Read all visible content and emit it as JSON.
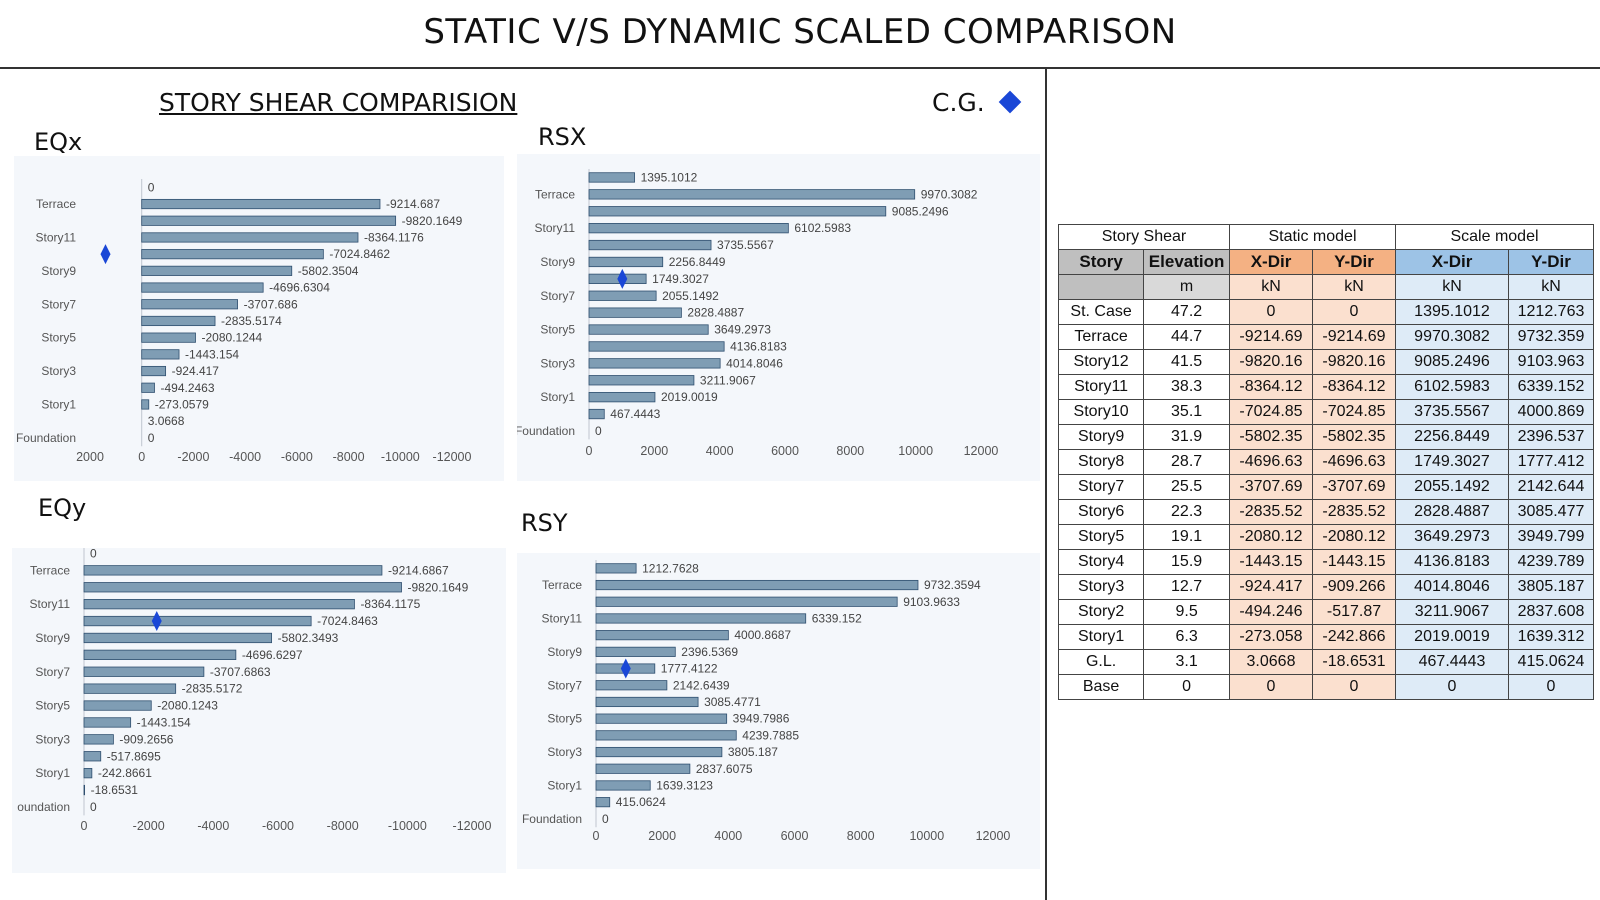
{
  "page": {
    "title": "STATIC V/S DYNAMIC SCALED COMPARISON",
    "subtitle": "STORY SHEAR COMPARISION",
    "cg_label": "C.G.",
    "cg_icon": "diamond-icon",
    "cg_color": "#1a47d6"
  },
  "colors": {
    "bar_fill": "#7f9db4",
    "bar_stroke": "#2f4f6f",
    "panel_bg": "#f4f7fb"
  },
  "chart_data": [
    {
      "id": "eqx",
      "type": "bar",
      "orientation": "horizontal",
      "title": "EQx",
      "values": [
        0,
        -9214.687,
        -9820.1649,
        -8364.1176,
        -7024.8462,
        -5802.3504,
        -4696.6304,
        -3707.686,
        -2835.5174,
        -2080.1244,
        -1443.154,
        -924.417,
        -494.2463,
        -273.0579,
        3.0668,
        0
      ],
      "labels": [
        "0",
        "-9214.687",
        "-9820.1649",
        "-8364.1176",
        "-7024.8462",
        "-5802.3504",
        "-4696.6304",
        "-3707.686",
        "-2835.5174",
        "-2080.1244",
        "-1443.154",
        "-924.417",
        "-494.2463",
        "-273.0579",
        "3.0668",
        "0"
      ],
      "category_labels": [
        "",
        "Terrace",
        "",
        "Story11",
        "",
        "Story9",
        "",
        "Story7",
        "",
        "Story5",
        "",
        "Story3",
        "",
        "Story1",
        "",
        "Foundation"
      ],
      "xlim": [
        2000,
        -12000
      ],
      "ticks": [
        2000,
        0,
        -2000,
        -4000,
        -6000,
        -8000,
        -10000,
        -12000
      ],
      "tick_labels": [
        "2000",
        "0",
        "-2000",
        "-4000",
        "-6000",
        "-8000",
        "-10000",
        "-12000"
      ],
      "cg_row": 4,
      "cg_value": 1400
    },
    {
      "id": "rsx",
      "type": "bar",
      "orientation": "horizontal",
      "title": "RSX",
      "values": [
        1395.1012,
        9970.3082,
        9085.2496,
        6102.5983,
        3735.5567,
        2256.8449,
        1749.3027,
        2055.1492,
        2828.4887,
        3649.2973,
        4136.8183,
        4014.8046,
        3211.9067,
        2019.0019,
        467.4443,
        0
      ],
      "labels": [
        "1395.1012",
        "9970.3082",
        "9085.2496",
        "6102.5983",
        "3735.5567",
        "2256.8449",
        "1749.3027",
        "2055.1492",
        "2828.4887",
        "3649.2973",
        "4136.8183",
        "4014.8046",
        "3211.9067",
        "2019.0019",
        "467.4443",
        "0"
      ],
      "category_labels": [
        "",
        "Terrace",
        "",
        "Story11",
        "",
        "Story9",
        "",
        "Story7",
        "",
        "Story5",
        "",
        "Story3",
        "",
        "Story1",
        "",
        "Foundation"
      ],
      "xlim": [
        0,
        12000
      ],
      "ticks": [
        0,
        2000,
        4000,
        6000,
        8000,
        10000,
        12000
      ],
      "tick_labels": [
        "0",
        "2000",
        "4000",
        "6000",
        "8000",
        "10000",
        "12000"
      ],
      "cg_row": 6,
      "cg_value": 1020
    },
    {
      "id": "eqy",
      "type": "bar",
      "orientation": "horizontal",
      "title": "EQy",
      "values": [
        0,
        -9214.6867,
        -9820.1649,
        -8364.1175,
        -7024.8463,
        -5802.3493,
        -4696.6297,
        -3707.6863,
        -2835.5172,
        -2080.1243,
        -1443.154,
        -909.2656,
        -517.8695,
        -242.8661,
        -18.6531,
        0
      ],
      "labels": [
        "0",
        "-9214.6867",
        "-9820.1649",
        "-8364.1175",
        "-7024.8463",
        "-5802.3493",
        "-4696.6297",
        "-3707.6863",
        "-2835.5172",
        "-2080.1243",
        "-1443.154",
        "-909.2656",
        "-517.8695",
        "-242.8661",
        "-18.6531",
        "0"
      ],
      "category_labels": [
        "",
        "Terrace",
        "",
        "Story11",
        "",
        "Story9",
        "",
        "Story7",
        "",
        "Story5",
        "",
        "Story3",
        "",
        "Story1",
        "",
        "oundation"
      ],
      "xlim": [
        0,
        -12000
      ],
      "ticks": [
        0,
        -2000,
        -4000,
        -6000,
        -8000,
        -10000,
        -12000
      ],
      "tick_labels": [
        "0",
        "-2000",
        "-4000",
        "-6000",
        "-8000",
        "-10000",
        "-12000"
      ],
      "cg_row": 4,
      "cg_value": -2250
    },
    {
      "id": "rsy",
      "type": "bar",
      "orientation": "horizontal",
      "title": "RSY",
      "values": [
        1212.7628,
        9732.3594,
        9103.9633,
        6339.152,
        4000.8687,
        2396.5369,
        1777.4122,
        2142.6439,
        3085.4771,
        3949.7986,
        4239.7885,
        3805.187,
        2837.6075,
        1639.3123,
        415.0624,
        0
      ],
      "labels": [
        "1212.7628",
        "9732.3594",
        "9103.9633",
        "6339.152",
        "4000.8687",
        "2396.5369",
        "1777.4122",
        "2142.6439",
        "3085.4771",
        "3949.7986",
        "4239.7885",
        "3805.187",
        "2837.6075",
        "1639.3123",
        "415.0624",
        "0"
      ],
      "category_labels": [
        "",
        "Terrace",
        "",
        "Story11",
        "",
        "Story9",
        "",
        "Story7",
        "",
        "Story5",
        "",
        "Story3",
        "",
        "Story1",
        "",
        "Foundation"
      ],
      "xlim": [
        0,
        12000
      ],
      "ticks": [
        0,
        2000,
        4000,
        6000,
        8000,
        10000,
        12000
      ],
      "tick_labels": [
        "0",
        "2000",
        "4000",
        "6000",
        "8000",
        "10000",
        "12000"
      ],
      "cg_row": 6,
      "cg_value": 900
    }
  ],
  "table": {
    "group_headers": [
      "Story Shear",
      "Static model",
      "Scale model"
    ],
    "column_headers": [
      "Story",
      "Elevation",
      "X-Dir",
      "Y-Dir",
      "X-Dir",
      "Y-Dir"
    ],
    "units": [
      "",
      "m",
      "kN",
      "kN",
      "kN",
      "kN"
    ],
    "rows": [
      [
        "St. Case",
        "47.2",
        "0",
        "0",
        "1395.1012",
        "1212.763"
      ],
      [
        "Terrace",
        "44.7",
        "-9214.69",
        "-9214.69",
        "9970.3082",
        "9732.359"
      ],
      [
        "Story12",
        "41.5",
        "-9820.16",
        "-9820.16",
        "9085.2496",
        "9103.963"
      ],
      [
        "Story11",
        "38.3",
        "-8364.12",
        "-8364.12",
        "6102.5983",
        "6339.152"
      ],
      [
        "Story10",
        "35.1",
        "-7024.85",
        "-7024.85",
        "3735.5567",
        "4000.869"
      ],
      [
        "Story9",
        "31.9",
        "-5802.35",
        "-5802.35",
        "2256.8449",
        "2396.537"
      ],
      [
        "Story8",
        "28.7",
        "-4696.63",
        "-4696.63",
        "1749.3027",
        "1777.412"
      ],
      [
        "Story7",
        "25.5",
        "-3707.69",
        "-3707.69",
        "2055.1492",
        "2142.644"
      ],
      [
        "Story6",
        "22.3",
        "-2835.52",
        "-2835.52",
        "2828.4887",
        "3085.477"
      ],
      [
        "Story5",
        "19.1",
        "-2080.12",
        "-2080.12",
        "3649.2973",
        "3949.799"
      ],
      [
        "Story4",
        "15.9",
        "-1443.15",
        "-1443.15",
        "4136.8183",
        "4239.789"
      ],
      [
        "Story3",
        "12.7",
        "-924.417",
        "-909.266",
        "4014.8046",
        "3805.187"
      ],
      [
        "Story2",
        "9.5",
        "-494.246",
        "-517.87",
        "3211.9067",
        "2837.608"
      ],
      [
        "Story1",
        "6.3",
        "-273.058",
        "-242.866",
        "2019.0019",
        "1639.312"
      ],
      [
        "G.L.",
        "3.1",
        "3.0668",
        "-18.6531",
        "467.4443",
        "415.0624"
      ],
      [
        "Base",
        "0",
        "0",
        "0",
        "0",
        "0"
      ]
    ]
  }
}
